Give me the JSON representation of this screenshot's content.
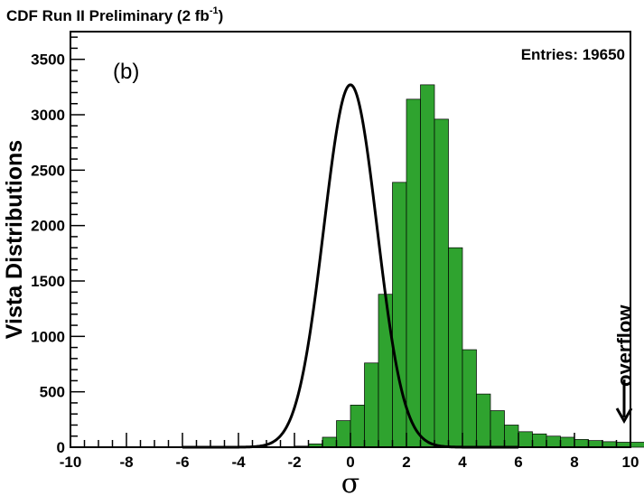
{
  "chart_data": {
    "type": "bar",
    "title": "CDF Run II Preliminary (2 fb",
    "title_superscript": "-1",
    "title_suffix": ")",
    "xlabel": "σ",
    "ylabel": "Vista Distributions",
    "panel_label": "(b)",
    "entries_label": "Entries: 19650",
    "overflow_label": "overflow",
    "xlim": [
      -10,
      10
    ],
    "ylim": [
      0,
      3750
    ],
    "x_ticks": [
      -10,
      -8,
      -6,
      -4,
      -2,
      0,
      2,
      4,
      6,
      8,
      10
    ],
    "y_ticks": [
      0,
      500,
      1000,
      1500,
      2000,
      2500,
      3000,
      3500
    ],
    "bin_width": 0.5,
    "bin_edges_start": -10,
    "values": [
      0,
      0,
      0,
      0,
      0,
      0,
      0,
      0,
      0,
      0,
      0,
      0,
      0,
      2,
      3,
      4,
      10,
      30,
      90,
      240,
      380,
      760,
      1380,
      2390,
      3140,
      3270,
      2960,
      1800,
      880,
      480,
      330,
      200,
      140,
      120,
      100,
      90,
      70,
      60,
      50,
      45,
      45,
      40,
      40,
      40,
      35,
      30,
      30,
      30,
      30,
      25,
      25,
      190
    ],
    "bar_color": "#2fa32f",
    "fit_curve": {
      "type": "gaussian",
      "amplitude": 3270,
      "mean": 0,
      "sigma": 0.95,
      "color": "#000000"
    },
    "grid": false,
    "legend": "none"
  }
}
